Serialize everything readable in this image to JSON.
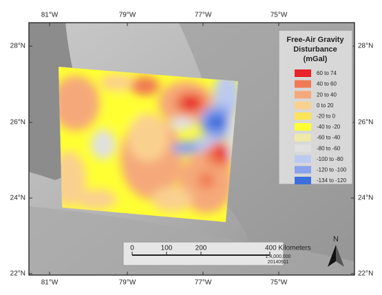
{
  "map": {
    "lon_labels": [
      "81°W",
      "79°W",
      "77°W",
      "75°W"
    ],
    "lat_labels": [
      "28°N",
      "26°N",
      "24°N",
      "22°N"
    ],
    "legend": {
      "title": [
        "Free-Air Gravity",
        "Disturbance",
        "(mGal)"
      ],
      "items": [
        {
          "label": "60 to 74",
          "color": "#e8232a"
        },
        {
          "label": "40 to 60",
          "color": "#f07a55"
        },
        {
          "label": "20 to 40",
          "color": "#f5a97a"
        },
        {
          "label": "0 to 20",
          "color": "#fad08f"
        },
        {
          "label": "-20 to 0",
          "color": "#fbe45a"
        },
        {
          "label": "-40 to -20",
          "color": "#ffff33"
        },
        {
          "label": "-60 to -40",
          "color": "#f0eaa8"
        },
        {
          "label": "-80 to -60",
          "color": "#e0e0e0"
        },
        {
          "label": "-100 to -80",
          "color": "#bcc9f0"
        },
        {
          "label": "-120 to -100",
          "color": "#8aa3ec"
        },
        {
          "label": "-134 to -120",
          "color": "#3d6fdc"
        }
      ]
    },
    "scale_bar": {
      "labels": [
        "0",
        "100",
        "200",
        "400 Kilometers"
      ],
      "scale": "1:4,000,000",
      "date": "20140911"
    },
    "north": "N"
  }
}
